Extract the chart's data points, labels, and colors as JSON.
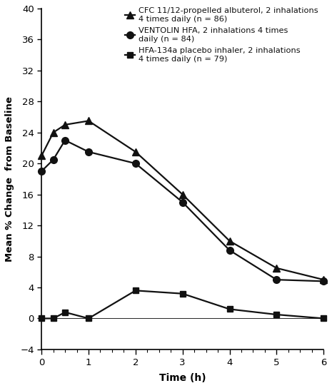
{
  "title": "",
  "xlabel": "Time (h)",
  "ylabel": "Mean % Change  from Baseline",
  "xlim": [
    0,
    6
  ],
  "ylim": [
    -4,
    40
  ],
  "yticks": [
    -4,
    0,
    4,
    8,
    12,
    16,
    20,
    24,
    28,
    32,
    36,
    40
  ],
  "xticks": [
    0,
    1,
    2,
    3,
    4,
    5,
    6
  ],
  "series": [
    {
      "label": "CFC 11/12-propelled albuterol, 2 inhalations\n4 times daily (n = 86)",
      "x": [
        0.0,
        0.25,
        0.5,
        1.0,
        2.0,
        3.0,
        4.0,
        5.0,
        6.0
      ],
      "y": [
        21.0,
        24.0,
        25.0,
        25.5,
        21.5,
        16.0,
        10.0,
        6.5,
        5.0
      ],
      "marker": "^",
      "color": "#111111",
      "markersize": 7,
      "linewidth": 1.6
    },
    {
      "label": "VENTOLIN HFA, 2 inhalations 4 times\ndaily (n = 84)",
      "x": [
        0.0,
        0.25,
        0.5,
        1.0,
        2.0,
        3.0,
        4.0,
        5.0,
        6.0
      ],
      "y": [
        19.0,
        20.5,
        23.0,
        21.5,
        20.0,
        15.0,
        8.8,
        5.0,
        4.8
      ],
      "marker": "o",
      "color": "#111111",
      "markersize": 7,
      "linewidth": 1.6
    },
    {
      "label": "HFA-134a placebo inhaler, 2 inhalations\n4 times daily (n = 79)",
      "x": [
        0.0,
        0.25,
        0.5,
        1.0,
        2.0,
        3.0,
        4.0,
        5.0,
        6.0
      ],
      "y": [
        0.0,
        0.0,
        0.8,
        0.0,
        3.6,
        3.2,
        1.2,
        0.5,
        0.0
      ],
      "marker": "s",
      "color": "#111111",
      "markersize": 6,
      "linewidth": 1.6
    }
  ],
  "background_color": "#ffffff",
  "legend_fontsize": 8.2,
  "axis_label_fontsize": 10,
  "tick_fontsize": 9.5,
  "minor_xtick_interval": 0.25
}
